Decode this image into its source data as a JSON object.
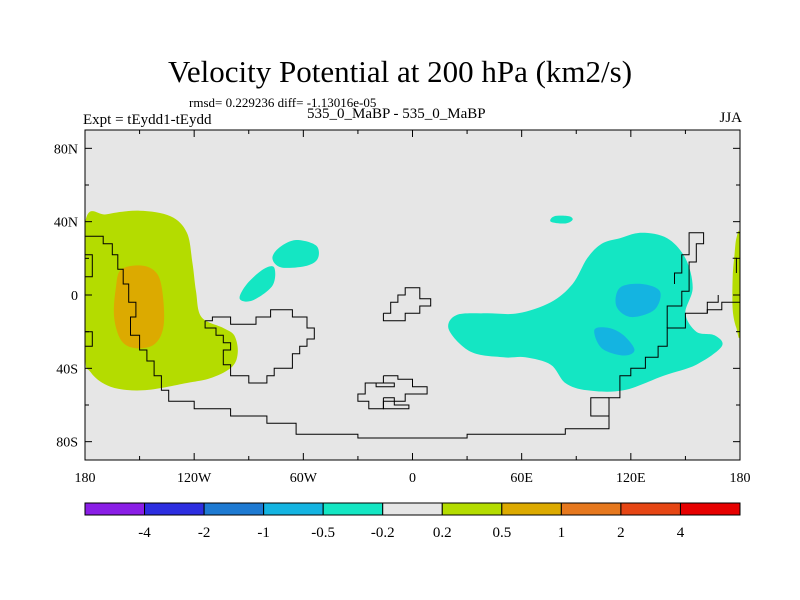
{
  "chart_data": {
    "type": "contour-map",
    "title": "Velocity Potential at 200 hPa (km2/s)",
    "stats_line": "rmsd= 0.229236 diff= -1.13016e-05",
    "left_label": "Expt = tEydd1-tEydd",
    "center_label": "535_0_MaBP - 535_0_MaBP",
    "right_label": "JJA",
    "x_axis": {
      "range": [
        -180,
        180
      ],
      "ticks": [
        {
          "value": -180,
          "label": "180"
        },
        {
          "value": -120,
          "label": "120W"
        },
        {
          "value": -60,
          "label": "60W"
        },
        {
          "value": 0,
          "label": "0"
        },
        {
          "value": 60,
          "label": "60E"
        },
        {
          "value": 120,
          "label": "120E"
        },
        {
          "value": 180,
          "label": "180"
        }
      ]
    },
    "y_axis": {
      "range": [
        -90,
        90
      ],
      "ticks": [
        {
          "value": 80,
          "label": "80N"
        },
        {
          "value": 40,
          "label": "40N"
        },
        {
          "value": 0,
          "label": "0"
        },
        {
          "value": -40,
          "label": "40S"
        },
        {
          "value": -80,
          "label": "80S"
        }
      ]
    },
    "colorbar": {
      "colors": [
        "#8a1ee6",
        "#2d2ee0",
        "#1e7ad2",
        "#14b4e1",
        "#14e6c3",
        "#e6e6e6",
        "#b4dc00",
        "#dcaa00",
        "#e6781e",
        "#e64614",
        "#e60000"
      ],
      "levels": [
        "-4",
        "-2",
        "-1",
        "-0.5",
        "-0.2",
        "0.2",
        "0.5",
        "1",
        "2",
        "4"
      ]
    },
    "regions": [
      {
        "name": "positive-west-pacific",
        "category": "0.5 to 1",
        "color": "#b4dc00",
        "points": [
          [
            -180,
            39
          ],
          [
            -168,
            44
          ],
          [
            -150,
            46
          ],
          [
            -133,
            43
          ],
          [
            -124,
            34
          ],
          [
            -121,
            18
          ],
          [
            -119,
            2
          ],
          [
            -116,
            -12
          ],
          [
            -104,
            -18
          ],
          [
            -98,
            -22
          ],
          [
            -96,
            -31
          ],
          [
            -99,
            -39
          ],
          [
            -110,
            -45
          ],
          [
            -124,
            -48
          ],
          [
            -148,
            -52
          ],
          [
            -166,
            -50
          ],
          [
            -177,
            -42
          ],
          [
            -180,
            -30
          ]
        ]
      },
      {
        "name": "positive-core-west-pacific",
        "category": "1 to 2",
        "color": "#dcaa00",
        "points": [
          [
            -160,
            14
          ],
          [
            -148,
            16
          ],
          [
            -140,
            11
          ],
          [
            -137,
            -2
          ],
          [
            -137,
            -18
          ],
          [
            -142,
            -27
          ],
          [
            -152,
            -29
          ],
          [
            -160,
            -25
          ],
          [
            -164,
            -12
          ],
          [
            -163,
            4
          ]
        ]
      },
      {
        "name": "positive-date-line-east",
        "category": "0.5 to 1",
        "color": "#b4dc00",
        "points": [
          [
            178,
            31
          ],
          [
            180,
            31
          ],
          [
            180,
            -20
          ],
          [
            178,
            -18
          ],
          [
            176,
            -8
          ],
          [
            176,
            10
          ],
          [
            177,
            22
          ]
        ]
      },
      {
        "name": "negative-asia-indian-ocean",
        "category": "-0.5 to -0.2",
        "color": "#14e6c3",
        "points": [
          [
            104,
            28
          ],
          [
            114,
            31
          ],
          [
            126,
            34
          ],
          [
            140,
            31
          ],
          [
            150,
            20
          ],
          [
            154,
            4
          ],
          [
            150,
            -10
          ],
          [
            156,
            -20
          ],
          [
            166,
            -22
          ],
          [
            170,
            -28
          ],
          [
            156,
            -38
          ],
          [
            138,
            -44
          ],
          [
            116,
            -52
          ],
          [
            96,
            -52
          ],
          [
            84,
            -48
          ],
          [
            76,
            -38
          ],
          [
            62,
            -34
          ],
          [
            50,
            -34
          ],
          [
            32,
            -31
          ],
          [
            20,
            -19
          ],
          [
            24,
            -11
          ],
          [
            40,
            -10
          ],
          [
            58,
            -10
          ],
          [
            76,
            -4
          ],
          [
            88,
            6
          ],
          [
            96,
            20
          ]
        ]
      },
      {
        "name": "negative-core-indian-ocean",
        "category": "-1 to -0.5",
        "color": "#14b4e1",
        "points": [
          [
            114,
            4
          ],
          [
            126,
            6
          ],
          [
            136,
            2
          ],
          [
            133,
            -8
          ],
          [
            120,
            -12
          ],
          [
            112,
            -6
          ]
        ]
      },
      {
        "name": "negative-core-south",
        "category": "-1 to -0.5",
        "color": "#14b4e1",
        "points": [
          [
            100,
            -19
          ],
          [
            108,
            -18
          ],
          [
            116,
            -22
          ],
          [
            122,
            -30
          ],
          [
            116,
            -33
          ],
          [
            104,
            -29
          ]
        ]
      },
      {
        "name": "negative-mid-pacific-north",
        "category": "-0.5 to -0.2",
        "color": "#14e6c3",
        "points": [
          [
            -73,
            26
          ],
          [
            -64,
            30
          ],
          [
            -53,
            27
          ],
          [
            -52,
            20
          ],
          [
            -58,
            16
          ],
          [
            -72,
            15
          ],
          [
            -77,
            20
          ]
        ]
      },
      {
        "name": "negative-mid-pacific-south",
        "category": "-0.5 to -0.2",
        "color": "#14e6c3",
        "points": [
          [
            -82,
            14
          ],
          [
            -76,
            15
          ],
          [
            -77,
            5
          ],
          [
            -88,
            -3
          ],
          [
            -95,
            -2
          ],
          [
            -91,
            6
          ]
        ]
      },
      {
        "name": "negative-central-asia",
        "category": "-0.5 to -0.2",
        "color": "#14e6c3",
        "points": [
          [
            78,
            43
          ],
          [
            86,
            43
          ],
          [
            88,
            41
          ],
          [
            84,
            39
          ],
          [
            76,
            40
          ]
        ]
      }
    ],
    "coastlines": [
      [
        [
          -180,
          32
        ],
        [
          -170,
          32
        ],
        [
          -170,
          28
        ],
        [
          -165,
          28
        ],
        [
          -165,
          22
        ],
        [
          -162,
          22
        ],
        [
          -162,
          14
        ],
        [
          -159,
          14
        ],
        [
          -159,
          6
        ],
        [
          -156,
          6
        ],
        [
          -156,
          -4
        ],
        [
          -152,
          -4
        ],
        [
          -152,
          -12
        ],
        [
          -155,
          -12
        ],
        [
          -155,
          -22
        ],
        [
          -150,
          -22
        ],
        [
          -150,
          -30
        ],
        [
          -146,
          -30
        ],
        [
          -146,
          -36
        ],
        [
          -142,
          -36
        ],
        [
          -142,
          -44
        ],
        [
          -138,
          -44
        ],
        [
          -138,
          -52
        ],
        [
          -134,
          -52
        ],
        [
          -134,
          -58
        ],
        [
          -120,
          -58
        ],
        [
          -120,
          -62
        ],
        [
          -100,
          -62
        ],
        [
          -100,
          -66
        ],
        [
          -80,
          -66
        ],
        [
          -80,
          -70
        ],
        [
          -64,
          -70
        ],
        [
          -64,
          -76
        ],
        [
          -30,
          -76
        ],
        [
          -30,
          -78
        ],
        [
          30,
          -78
        ],
        [
          30,
          -76
        ],
        [
          84,
          -76
        ],
        [
          84,
          -73
        ],
        [
          108,
          -73
        ],
        [
          108,
          -56
        ],
        [
          114,
          -56
        ],
        [
          114,
          -44
        ],
        [
          120,
          -44
        ],
        [
          120,
          -40
        ],
        [
          128,
          -40
        ],
        [
          128,
          -34
        ],
        [
          135,
          -34
        ],
        [
          135,
          -28
        ],
        [
          140,
          -28
        ],
        [
          140,
          -18
        ],
        [
          150,
          -18
        ],
        [
          150,
          -10
        ],
        [
          162,
          -10
        ],
        [
          162,
          -8
        ],
        [
          170,
          -8
        ],
        [
          170,
          -4
        ],
        [
          180,
          -4
        ]
      ],
      [
        [
          -180,
          22
        ],
        [
          -176,
          22
        ],
        [
          -176,
          10
        ],
        [
          -180,
          10
        ]
      ],
      [
        [
          -180,
          -20
        ],
        [
          -176,
          -20
        ],
        [
          -176,
          -28
        ],
        [
          -180,
          -28
        ]
      ],
      [
        [
          -114,
          -14
        ],
        [
          -114,
          -18
        ],
        [
          -108,
          -18
        ],
        [
          -108,
          -22
        ],
        [
          -104,
          -22
        ],
        [
          -104,
          -26
        ],
        [
          -100,
          -26
        ],
        [
          -100,
          -30
        ],
        [
          -104,
          -30
        ],
        [
          -104,
          -38
        ],
        [
          -100,
          -38
        ],
        [
          -100,
          -44
        ],
        [
          -90,
          -44
        ],
        [
          -90,
          -48
        ],
        [
          -80,
          -48
        ],
        [
          -80,
          -44
        ],
        [
          -76,
          -44
        ],
        [
          -76,
          -40
        ],
        [
          -66,
          -40
        ],
        [
          -66,
          -32
        ],
        [
          -62,
          -32
        ],
        [
          -62,
          -28
        ],
        [
          -58,
          -28
        ],
        [
          -58,
          -24
        ],
        [
          -54,
          -24
        ],
        [
          -54,
          -18
        ],
        [
          -58,
          -18
        ],
        [
          -58,
          -12
        ],
        [
          -66,
          -12
        ],
        [
          -66,
          -8
        ],
        [
          -78,
          -8
        ],
        [
          -78,
          -12
        ],
        [
          -86,
          -12
        ],
        [
          -86,
          -16
        ],
        [
          -100,
          -16
        ],
        [
          -100,
          -12
        ],
        [
          -110,
          -12
        ],
        [
          -110,
          -14
        ],
        [
          -114,
          -14
        ]
      ],
      [
        [
          -16,
          -10
        ],
        [
          -12,
          -10
        ],
        [
          -12,
          -4
        ],
        [
          -8,
          -4
        ],
        [
          -8,
          0
        ],
        [
          -4,
          0
        ],
        [
          -4,
          4
        ],
        [
          4,
          4
        ],
        [
          4,
          -2
        ],
        [
          10,
          -2
        ],
        [
          10,
          -6
        ],
        [
          4,
          -6
        ],
        [
          4,
          -10
        ],
        [
          -4,
          -10
        ],
        [
          -4,
          -14
        ],
        [
          -16,
          -14
        ],
        [
          -16,
          -10
        ]
      ],
      [
        [
          -16,
          -44
        ],
        [
          -16,
          -48
        ],
        [
          -26,
          -48
        ],
        [
          -26,
          -54
        ],
        [
          -30,
          -54
        ],
        [
          -30,
          -58
        ],
        [
          -24,
          -58
        ],
        [
          -24,
          -62
        ],
        [
          -16,
          -62
        ],
        [
          -16,
          -58
        ],
        [
          -4,
          -58
        ],
        [
          -4,
          -54
        ],
        [
          8,
          -54
        ],
        [
          8,
          -50
        ],
        [
          0,
          -50
        ],
        [
          0,
          -46
        ],
        [
          -8,
          -46
        ],
        [
          -8,
          -44
        ],
        [
          -16,
          -44
        ]
      ],
      [
        [
          -16,
          -56
        ],
        [
          -10,
          -56
        ],
        [
          -10,
          -60
        ],
        [
          -2,
          -60
        ],
        [
          -2,
          -62
        ],
        [
          -16,
          -62
        ],
        [
          -16,
          -56
        ]
      ],
      [
        [
          -18,
          -48
        ],
        [
          -10,
          -48
        ],
        [
          -10,
          -50
        ],
        [
          -20,
          -50
        ],
        [
          -20,
          -48
        ],
        [
          -18,
          -48
        ]
      ],
      [
        [
          108,
          -56
        ],
        [
          98,
          -56
        ],
        [
          98,
          -66
        ],
        [
          108,
          -66
        ]
      ],
      [
        [
          140,
          -18
        ],
        [
          140,
          -6
        ],
        [
          148,
          -6
        ],
        [
          148,
          2
        ],
        [
          152,
          2
        ],
        [
          152,
          18
        ],
        [
          156,
          18
        ],
        [
          156,
          28
        ],
        [
          160,
          28
        ],
        [
          160,
          34
        ],
        [
          152,
          34
        ],
        [
          152,
          22
        ],
        [
          148,
          22
        ],
        [
          148,
          12
        ],
        [
          144,
          12
        ],
        [
          144,
          6
        ]
      ],
      [
        [
          162,
          -10
        ],
        [
          162,
          -4
        ],
        [
          168,
          -4
        ],
        [
          168,
          0
        ]
      ],
      [
        [
          178,
          34
        ],
        [
          180,
          34
        ]
      ],
      [
        [
          176,
          20
        ],
        [
          178,
          20
        ],
        [
          178,
          12
        ]
      ]
    ]
  }
}
